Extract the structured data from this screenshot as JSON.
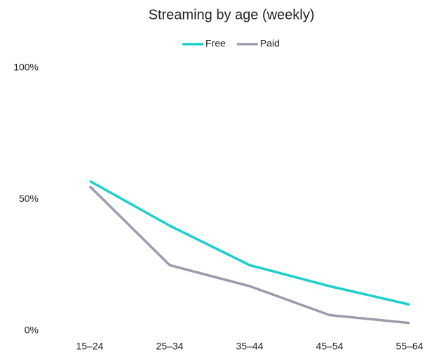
{
  "chart_data": {
    "type": "line",
    "title": "Streaming by age (weekly)",
    "categories": [
      "15–24",
      "25–34",
      "35–44",
      "45–54",
      "55–64"
    ],
    "series": [
      {
        "name": "Free",
        "color": "#1ccfcb",
        "values": [
          57,
          40,
          25,
          17,
          10
        ]
      },
      {
        "name": "Paid",
        "color": "#9c9aad",
        "values": [
          55,
          25,
          17,
          6,
          3
        ]
      }
    ],
    "ylim": [
      0,
      100
    ],
    "yticks": [
      {
        "value": 0,
        "label": "0%"
      },
      {
        "value": 50,
        "label": "50%"
      },
      {
        "value": 100,
        "label": "100%"
      }
    ],
    "grid": false,
    "legend": "top"
  }
}
